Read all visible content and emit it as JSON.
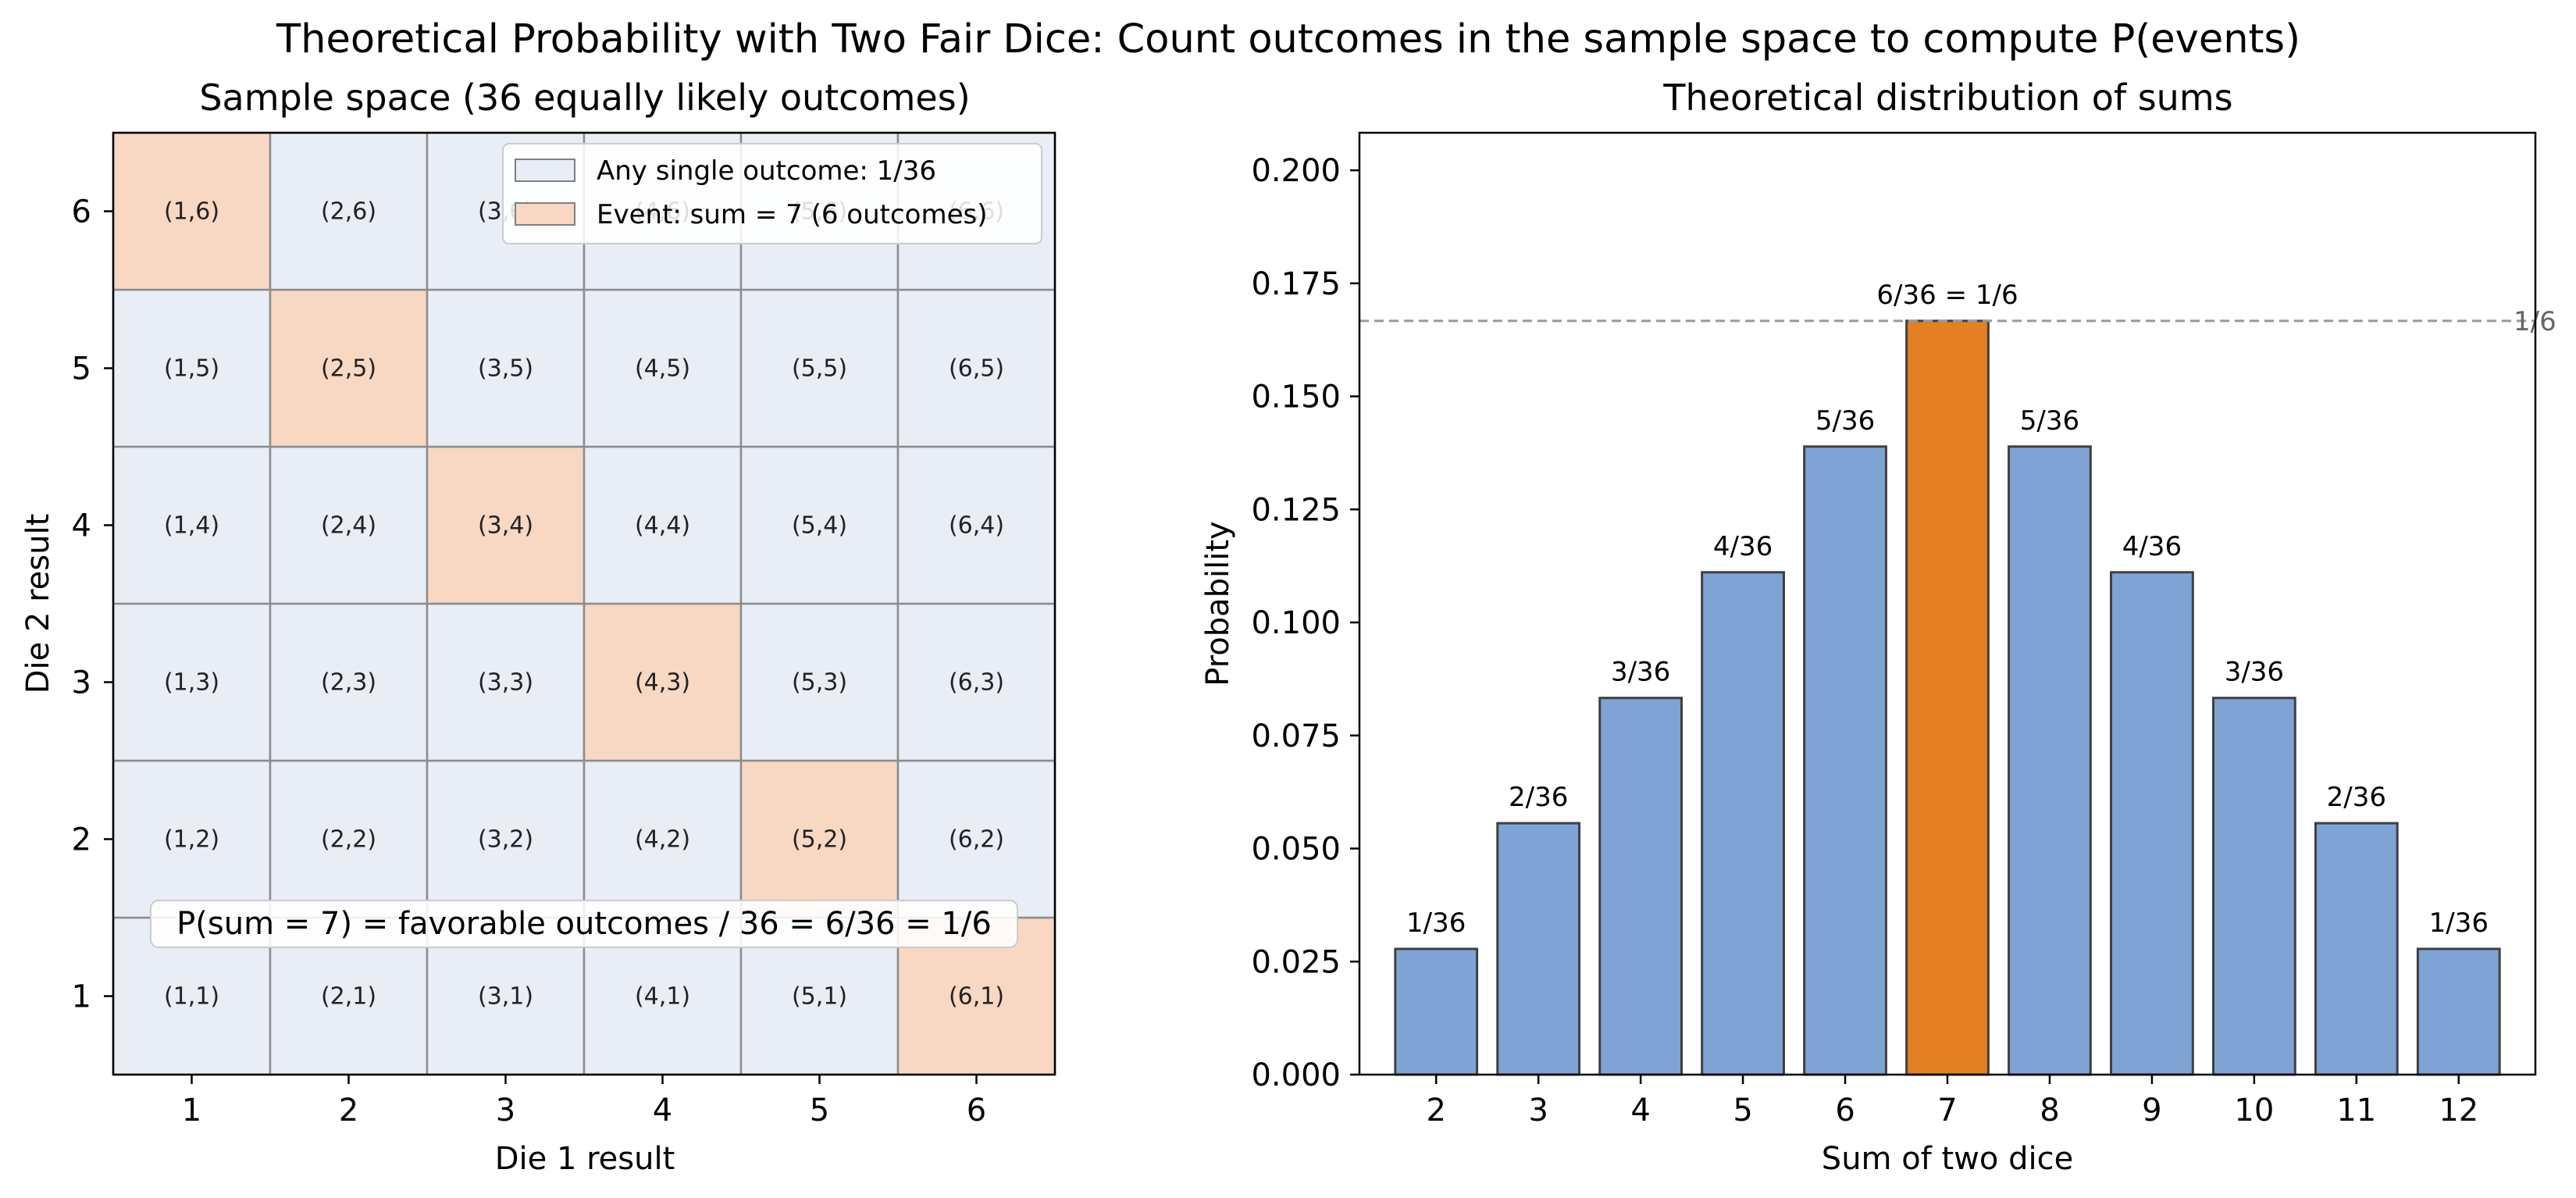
{
  "suptitle": "Theoretical Probability with Two Fair Dice: Count outcomes in the sample space to compute P(events)",
  "colors": {
    "neutral_cell": "#e8edf6",
    "event_cell": "#f8d7c3",
    "cell_edge": "#8c8c8c",
    "bar": "#7fa3d5",
    "bar_highlight": "#e57f24",
    "bar_edge": "#404040",
    "reference_line": "#999999"
  },
  "chart_data": [
    {
      "type": "heatmap",
      "title": "Sample space (36 equally likely outcomes)",
      "xlabel": "Die 1 result",
      "ylabel": "Die 2 result",
      "x_ticks": [
        "1",
        "2",
        "3",
        "4",
        "5",
        "6"
      ],
      "y_ticks": [
        "1",
        "2",
        "3",
        "4",
        "5",
        "6"
      ],
      "cells": [
        {
          "x": 1,
          "y": 1,
          "label": "(1,1)",
          "event": false
        },
        {
          "x": 2,
          "y": 1,
          "label": "(2,1)",
          "event": false
        },
        {
          "x": 3,
          "y": 1,
          "label": "(3,1)",
          "event": false
        },
        {
          "x": 4,
          "y": 1,
          "label": "(4,1)",
          "event": false
        },
        {
          "x": 5,
          "y": 1,
          "label": "(5,1)",
          "event": false
        },
        {
          "x": 6,
          "y": 1,
          "label": "(6,1)",
          "event": true
        },
        {
          "x": 1,
          "y": 2,
          "label": "(1,2)",
          "event": false
        },
        {
          "x": 2,
          "y": 2,
          "label": "(2,2)",
          "event": false
        },
        {
          "x": 3,
          "y": 2,
          "label": "(3,2)",
          "event": false
        },
        {
          "x": 4,
          "y": 2,
          "label": "(4,2)",
          "event": false
        },
        {
          "x": 5,
          "y": 2,
          "label": "(5,2)",
          "event": true
        },
        {
          "x": 6,
          "y": 2,
          "label": "(6,2)",
          "event": false
        },
        {
          "x": 1,
          "y": 3,
          "label": "(1,3)",
          "event": false
        },
        {
          "x": 2,
          "y": 3,
          "label": "(2,3)",
          "event": false
        },
        {
          "x": 3,
          "y": 3,
          "label": "(3,3)",
          "event": false
        },
        {
          "x": 4,
          "y": 3,
          "label": "(4,3)",
          "event": true
        },
        {
          "x": 5,
          "y": 3,
          "label": "(5,3)",
          "event": false
        },
        {
          "x": 6,
          "y": 3,
          "label": "(6,3)",
          "event": false
        },
        {
          "x": 1,
          "y": 4,
          "label": "(1,4)",
          "event": false
        },
        {
          "x": 2,
          "y": 4,
          "label": "(2,4)",
          "event": false
        },
        {
          "x": 3,
          "y": 4,
          "label": "(3,4)",
          "event": true
        },
        {
          "x": 4,
          "y": 4,
          "label": "(4,4)",
          "event": false
        },
        {
          "x": 5,
          "y": 4,
          "label": "(5,4)",
          "event": false
        },
        {
          "x": 6,
          "y": 4,
          "label": "(6,4)",
          "event": false
        },
        {
          "x": 1,
          "y": 5,
          "label": "(1,5)",
          "event": false
        },
        {
          "x": 2,
          "y": 5,
          "label": "(2,5)",
          "event": true
        },
        {
          "x": 3,
          "y": 5,
          "label": "(3,5)",
          "event": false
        },
        {
          "x": 4,
          "y": 5,
          "label": "(4,5)",
          "event": false
        },
        {
          "x": 5,
          "y": 5,
          "label": "(5,5)",
          "event": false
        },
        {
          "x": 6,
          "y": 5,
          "label": "(6,5)",
          "event": false
        },
        {
          "x": 1,
          "y": 6,
          "label": "(1,6)",
          "event": true
        },
        {
          "x": 2,
          "y": 6,
          "label": "(2,6)",
          "event": false
        },
        {
          "x": 3,
          "y": 6,
          "label": "(3,6)",
          "event": false
        },
        {
          "x": 4,
          "y": 6,
          "label": "(4,6)",
          "event": false
        },
        {
          "x": 5,
          "y": 6,
          "label": "(5,6)",
          "event": false
        },
        {
          "x": 6,
          "y": 6,
          "label": "(6,6)",
          "event": false
        }
      ],
      "legend": {
        "placement": "upper right",
        "entries": [
          "Any single outcome: 1/36",
          "Event: sum = 7 (6 outcomes)"
        ]
      },
      "annotation": "P(sum = 7) = favorable outcomes / 36 = 6/36 = 1/6"
    },
    {
      "type": "bar",
      "title": "Theoretical distribution of sums",
      "xlabel": "Sum of two dice",
      "ylabel": "Probability",
      "categories": [
        "2",
        "3",
        "4",
        "5",
        "6",
        "7",
        "8",
        "9",
        "10",
        "11",
        "12"
      ],
      "values": [
        0.0278,
        0.0556,
        0.0833,
        0.1111,
        0.1389,
        0.1667,
        0.1389,
        0.1111,
        0.0833,
        0.0556,
        0.0278
      ],
      "data_labels": [
        "1/36",
        "2/36",
        "3/36",
        "4/36",
        "5/36",
        "6/36 = 1/6",
        "5/36",
        "4/36",
        "3/36",
        "2/36",
        "1/36"
      ],
      "highlight_category": "7",
      "ylim": [
        0,
        0.2083
      ],
      "y_ticks": [
        0.0,
        0.025,
        0.05,
        0.075,
        0.1,
        0.125,
        0.15,
        0.175,
        0.2
      ],
      "y_tick_labels": [
        "0.000",
        "0.025",
        "0.050",
        "0.075",
        "0.100",
        "0.125",
        "0.150",
        "0.175",
        "0.200"
      ],
      "reference_line": {
        "value": 0.1667,
        "label": "1/6",
        "style": "dashed"
      },
      "grid": false
    }
  ]
}
